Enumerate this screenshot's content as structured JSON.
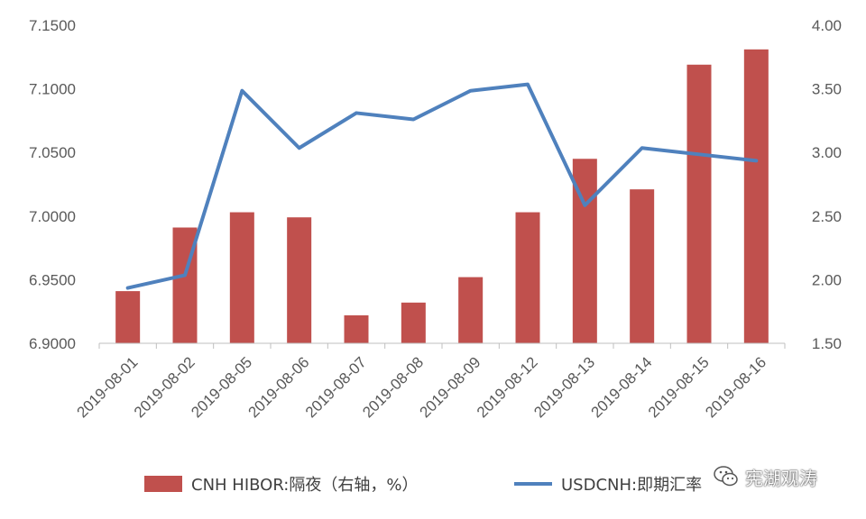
{
  "chart_data": {
    "type": "bar+line",
    "categories": [
      "2019-08-01",
      "2019-08-02",
      "2019-08-05",
      "2019-08-06",
      "2019-08-07",
      "2019-08-08",
      "2019-08-09",
      "2019-08-12",
      "2019-08-13",
      "2019-08-14",
      "2019-08-15",
      "2019-08-16"
    ],
    "series": [
      {
        "name": "CNH HIBOR:隔夜（右轴，%）",
        "kind": "bar",
        "axis": "right",
        "color": "#C0504D",
        "values": [
          1.91,
          2.41,
          2.53,
          2.49,
          1.72,
          1.82,
          2.02,
          2.53,
          2.95,
          2.71,
          3.69,
          3.81
        ]
      },
      {
        "name": "USDCNH:即期汇率",
        "kind": "line",
        "axis": "left",
        "color": "#4F81BD",
        "values": [
          6.9435,
          6.9535,
          7.0985,
          7.0535,
          7.081,
          7.076,
          7.0985,
          7.1035,
          7.0085,
          7.0535,
          7.0485,
          7.0435
        ]
      }
    ],
    "y_left": {
      "min": 6.9,
      "max": 7.15,
      "ticks": [
        "6.9000",
        "6.9500",
        "7.0000",
        "7.0500",
        "7.1000",
        "7.1500"
      ]
    },
    "y_right": {
      "min": 1.5,
      "max": 4.0,
      "ticks": [
        "1.50",
        "2.00",
        "2.50",
        "3.00",
        "3.50",
        "4.00"
      ]
    },
    "grid": false,
    "legend_position": "bottom"
  },
  "watermark": {
    "text": "宪湖观涛",
    "icon": "wechat-icon"
  }
}
